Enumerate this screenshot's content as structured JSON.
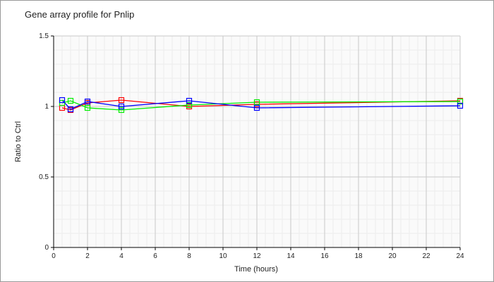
{
  "chart_data": {
    "type": "line",
    "title": "Gene array profile for Pnlip",
    "xlabel": "Time (hours)",
    "ylabel": "Ratio to Ctrl",
    "xlim": [
      0,
      24
    ],
    "ylim": [
      0,
      1.5
    ],
    "xticks": [
      0,
      2,
      4,
      6,
      8,
      10,
      12,
      14,
      16,
      18,
      20,
      22,
      24
    ],
    "yticks": [
      0,
      0.5,
      1,
      1.5
    ],
    "ytick_labels": [
      "0",
      "0.5",
      "1",
      "1.5"
    ],
    "grid": true,
    "x": [
      0.5,
      1,
      2,
      4,
      8,
      12,
      24
    ],
    "series": [
      {
        "name": "red",
        "color": "#ff0000",
        "values": [
          0.99,
          0.975,
          1.025,
          1.045,
          1.0,
          1.015,
          1.04
        ]
      },
      {
        "name": "green",
        "color": "#00ee00",
        "values": [
          1.025,
          1.04,
          0.99,
          0.975,
          1.01,
          1.03,
          1.035
        ]
      },
      {
        "name": "blue",
        "color": "#0000ff",
        "values": [
          1.045,
          0.98,
          1.035,
          1.0,
          1.04,
          0.99,
          1.005
        ]
      }
    ]
  }
}
